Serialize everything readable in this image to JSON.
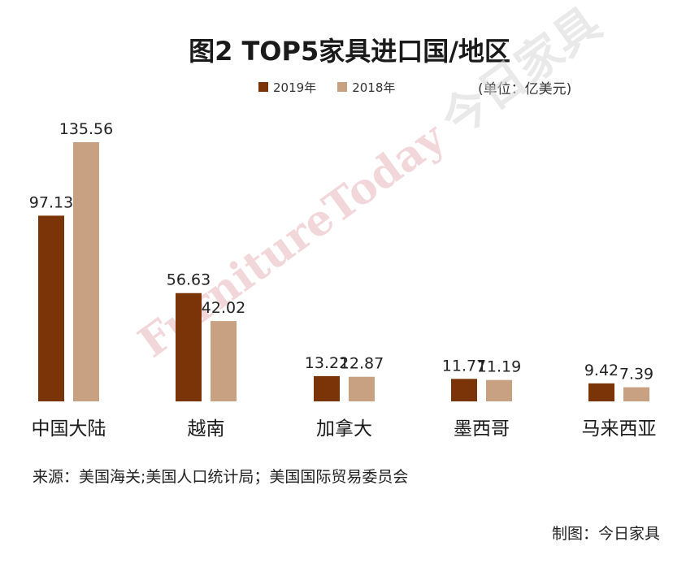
{
  "title": "图2  TOP5家具进口国/地区",
  "unit_label": "(单位：亿美元)",
  "source": "来源：美国海关;美国人口统计局；美国国际贸易委员会",
  "credit": "制图：今日家具",
  "watermark": {
    "latin": "FurnitureToday",
    "cn": "今日家具"
  },
  "colors": {
    "2019": "#7a3408",
    "2018": "#c8a182"
  },
  "chart_data": {
    "type": "bar",
    "title": "图2  TOP5家具进口国/地区",
    "categories": [
      "中国大陆",
      "越南",
      "加拿大",
      "墨西哥",
      "马来西亚"
    ],
    "series": [
      {
        "name": "2019年",
        "values": [
          97.13,
          56.63,
          13.22,
          11.77,
          9.42
        ]
      },
      {
        "name": "2018年",
        "values": [
          135.56,
          42.02,
          12.87,
          11.19,
          7.39
        ]
      }
    ],
    "ylabel": "(单位：亿美元)",
    "ylim": [
      0,
      135.56
    ],
    "grid": false,
    "legend": "top-center"
  }
}
